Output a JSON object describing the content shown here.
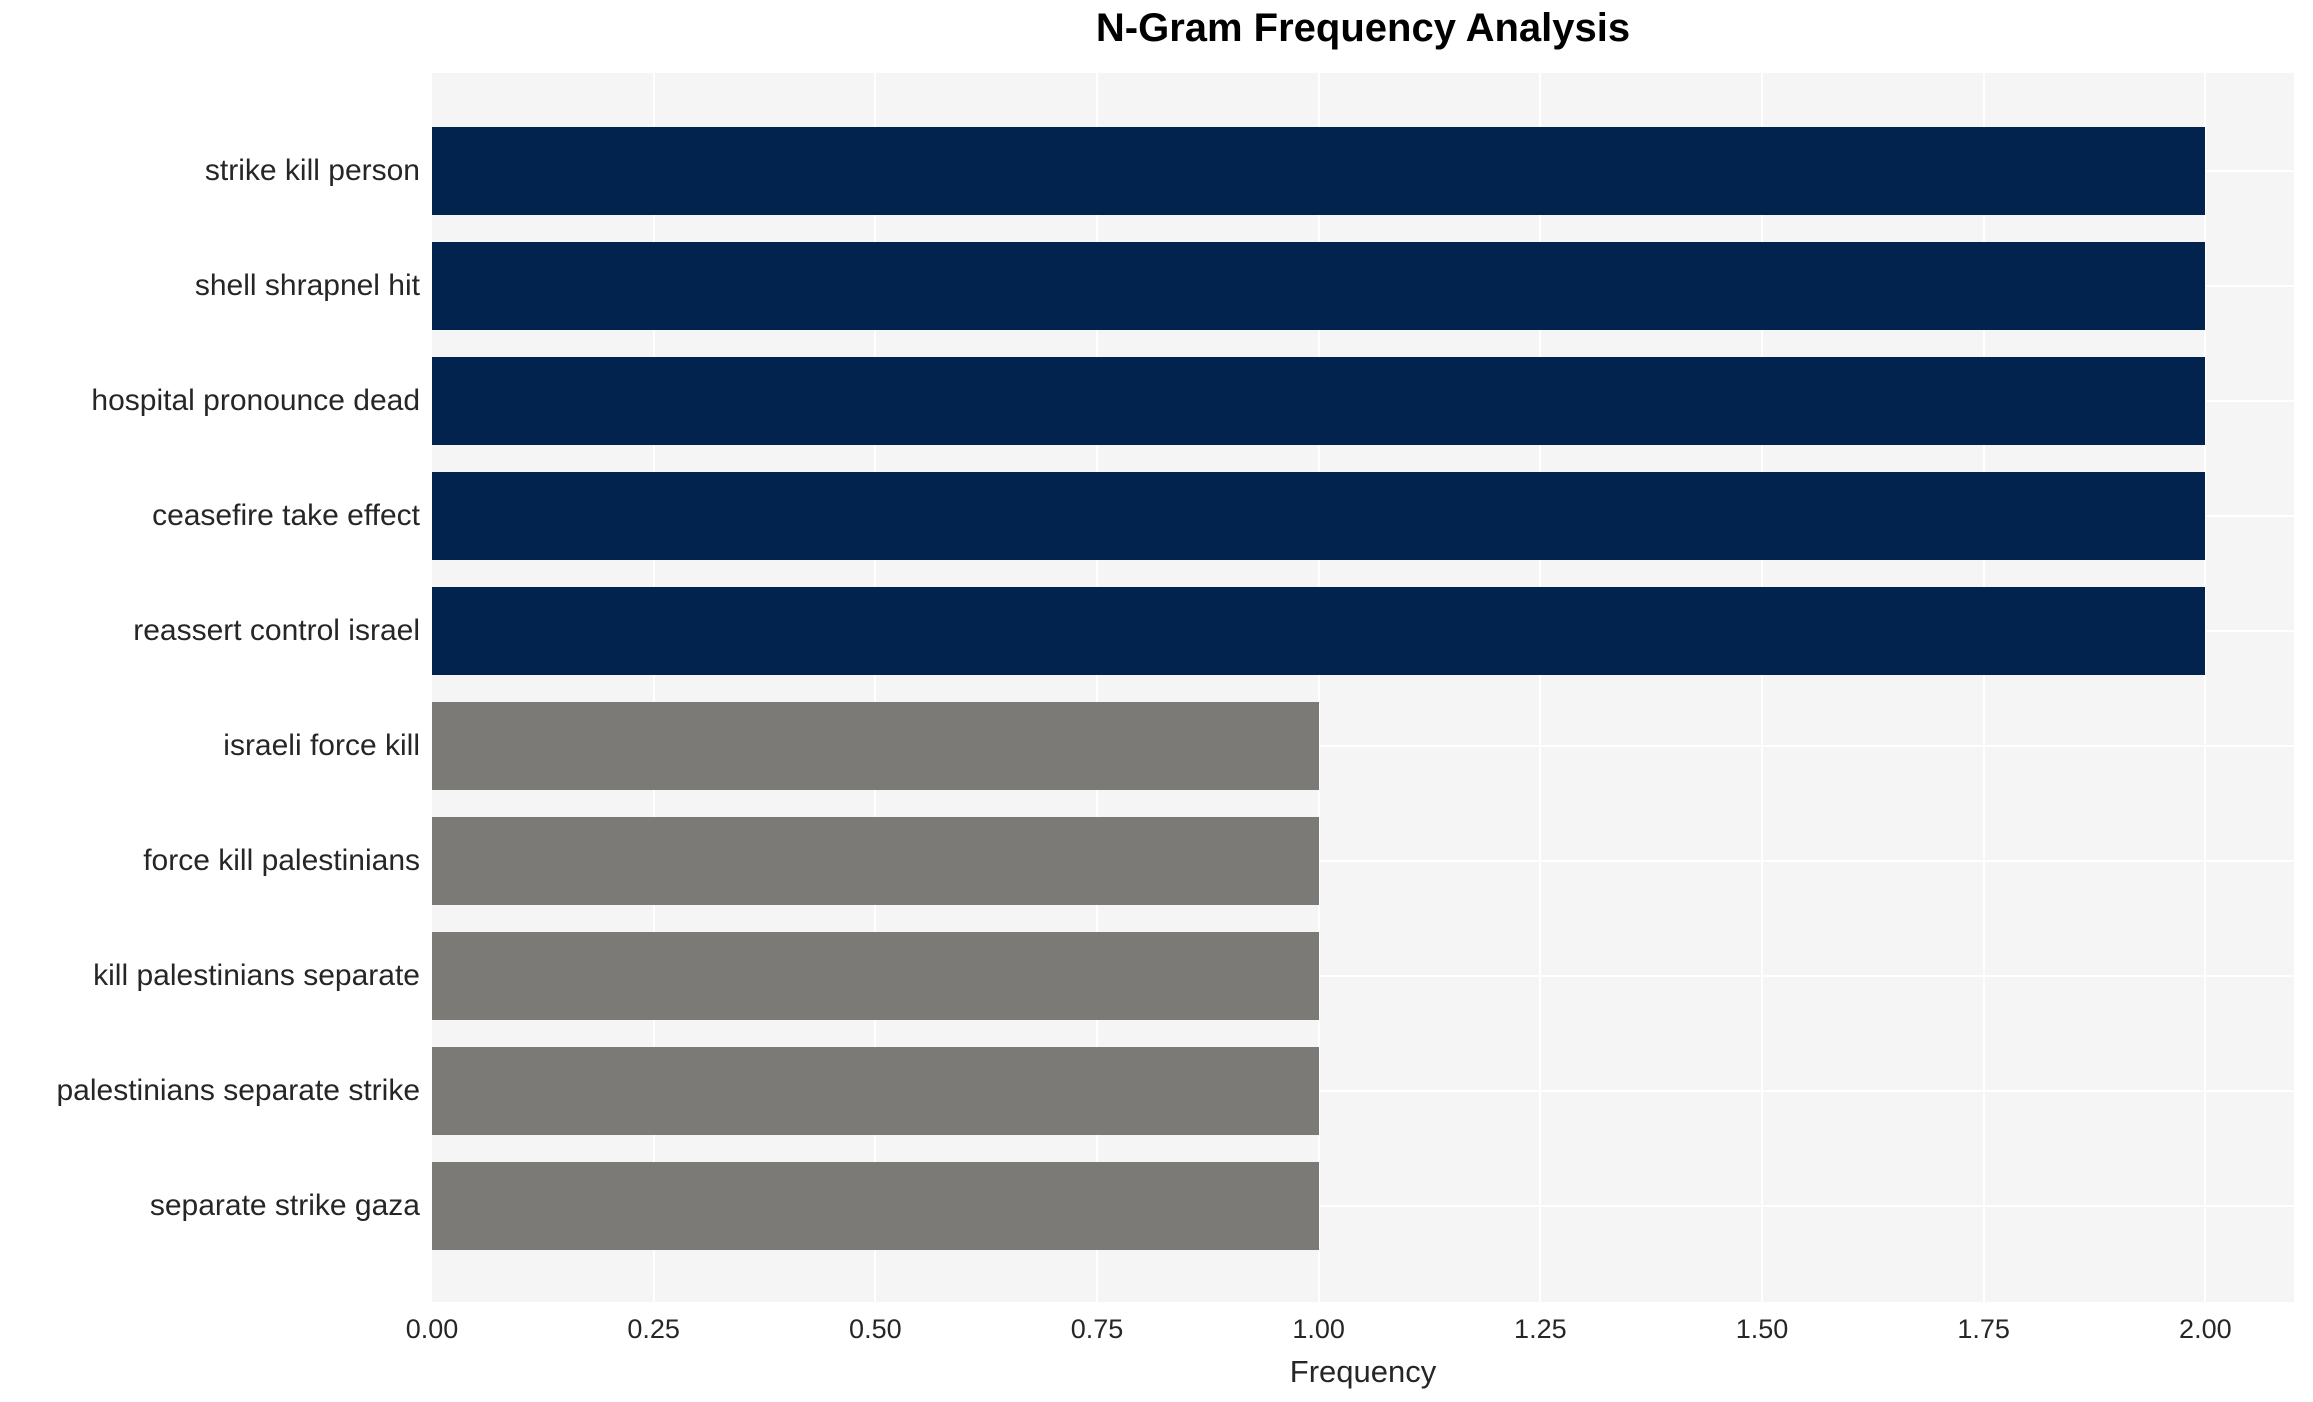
{
  "chart_data": {
    "type": "bar",
    "orientation": "horizontal",
    "title": "N-Gram Frequency Analysis",
    "xlabel": "Frequency",
    "ylabel": "",
    "categories": [
      "strike kill person",
      "shell shrapnel hit",
      "hospital pronounce dead",
      "ceasefire take effect",
      "reassert control israel",
      "israeli force kill",
      "force kill palestinians",
      "kill palestinians separate",
      "palestinians separate strike",
      "separate strike gaza"
    ],
    "values": [
      2.0,
      2.0,
      2.0,
      2.0,
      2.0,
      1.0,
      1.0,
      1.0,
      1.0,
      1.0
    ],
    "bar_colors": [
      "#02234e",
      "#02234e",
      "#02234e",
      "#02234e",
      "#02234e",
      "#7b7a76",
      "#7b7a76",
      "#7b7a76",
      "#7b7a76",
      "#7b7a76"
    ],
    "xlim": [
      0,
      2.1
    ],
    "xticks": [
      0.0,
      0.25,
      0.5,
      0.75,
      1.0,
      1.25,
      1.5,
      1.75,
      2.0
    ],
    "xtick_labels": [
      "0.00",
      "0.25",
      "0.50",
      "0.75",
      "1.00",
      "1.25",
      "1.50",
      "1.75",
      "2.00"
    ],
    "grid": true,
    "grid_color": "#ffffff",
    "plot_bg": "#f5f5f6",
    "legend": "none"
  }
}
